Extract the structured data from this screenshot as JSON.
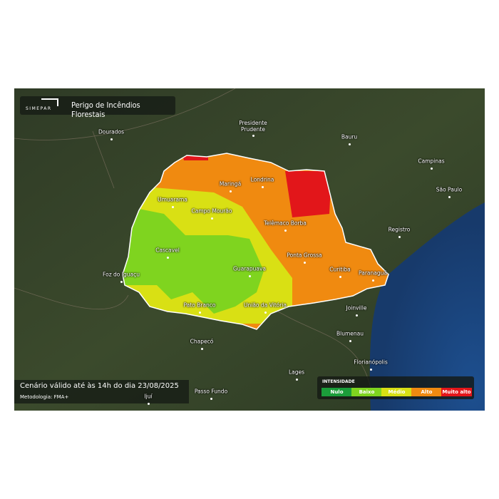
{
  "header": {
    "logo": "SIMEPAR",
    "title": "Perigo de Incêndios Florestais"
  },
  "cities": [
    "Dourados",
    "Presidente Prudente",
    "Bauru",
    "Campinas",
    "São Paulo",
    "Registro",
    "Maringá",
    "Londrina",
    "Umuarama",
    "Campo Mourão",
    "Telêmaco Borba",
    "Cascavel",
    "Ponta Grossa",
    "Foz do Iguaçu",
    "Guarapuava",
    "Curitiba",
    "Paranaguá",
    "Pato Branco",
    "União da Vitória",
    "Joinville",
    "Blumenau",
    "Chapecó",
    "Florianópolis",
    "Lages",
    "Passo Fundo",
    "Ijuí"
  ],
  "footer": {
    "validity": "Cenário válido até às 14h do dia 23/08/2025",
    "method": "Metodologia: FMA+"
  },
  "legend": {
    "title": "INTENSIDADE",
    "items": [
      {
        "label": "Nulo",
        "color": "#1b9d3a"
      },
      {
        "label": "Baixo",
        "color": "#7fd41f"
      },
      {
        "label": "Médio",
        "color": "#d9e014"
      },
      {
        "label": "Alto",
        "color": "#f08a10"
      },
      {
        "label": "Muito alto",
        "color": "#e2161a"
      }
    ]
  }
}
